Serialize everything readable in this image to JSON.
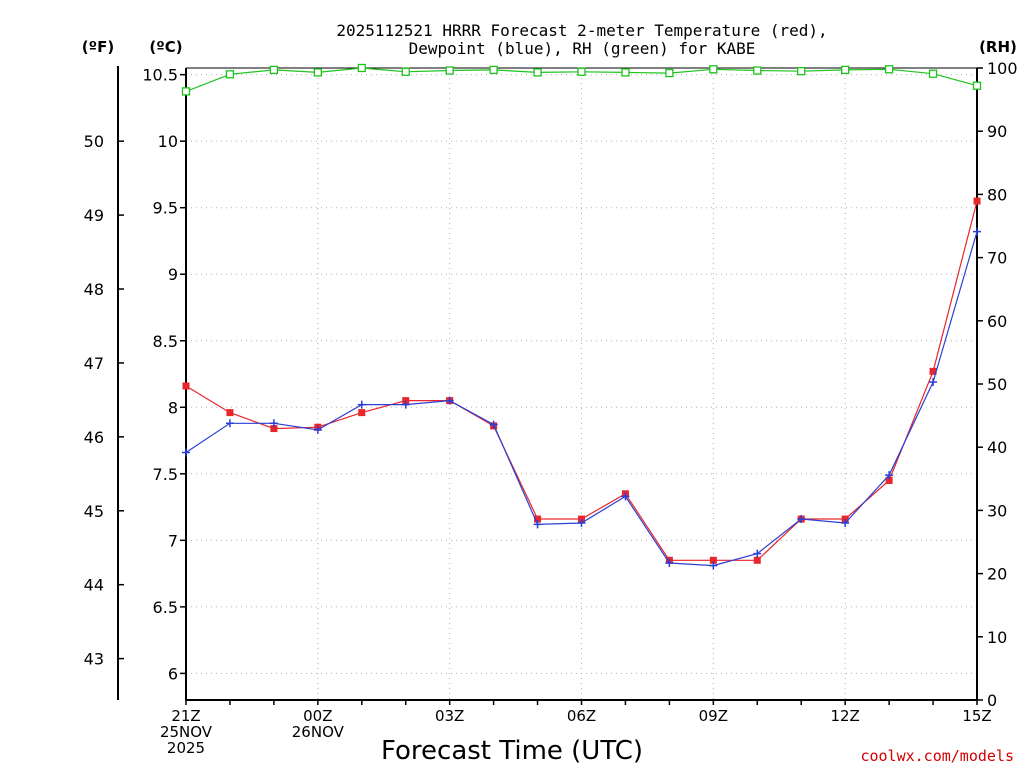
{
  "chart_data": {
    "type": "line",
    "title_line1": "2025112521 HRRR Forecast 2-meter Temperature (red),",
    "title_line2": "Dewpoint (blue), RH (green) for KABE",
    "unit_f": "(ºF)",
    "unit_c": "(ºC)",
    "unit_rh": "(RH)",
    "xlabel": "Forecast Time (UTC)",
    "watermark": "coolwx.com/models",
    "x_hours": [
      0,
      1,
      2,
      3,
      4,
      5,
      6,
      7,
      8,
      9,
      10,
      11,
      12,
      13,
      14,
      15,
      16,
      17,
      18
    ],
    "x_ticks": [
      {
        "hour": 0,
        "lines": [
          "21Z",
          "25NOV",
          "2025"
        ]
      },
      {
        "hour": 3,
        "lines": [
          "00Z",
          "26NOV"
        ]
      },
      {
        "hour": 6,
        "lines": [
          "03Z"
        ]
      },
      {
        "hour": 9,
        "lines": [
          "06Z"
        ]
      },
      {
        "hour": 12,
        "lines": [
          "09Z"
        ]
      },
      {
        "hour": 15,
        "lines": [
          "12Z"
        ]
      },
      {
        "hour": 18,
        "lines": [
          "15Z"
        ]
      }
    ],
    "c_axis": {
      "range": [
        5.8,
        10.55
      ],
      "ticks": [
        "6",
        "6.5",
        "7",
        "7.5",
        "8",
        "8.5",
        "9",
        "9.5",
        "10",
        "10.5"
      ]
    },
    "f_axis": {
      "ticks": [
        "43",
        "44",
        "45",
        "46",
        "47",
        "48",
        "49",
        "50"
      ]
    },
    "rh_axis": {
      "range": [
        0,
        100
      ],
      "ticks": [
        "0",
        "10",
        "20",
        "30",
        "40",
        "50",
        "60",
        "70",
        "80",
        "90",
        "100"
      ]
    },
    "series": [
      {
        "name": "Temperature",
        "unit": "C",
        "color": "#e8262b",
        "marker": "square",
        "values": [
          8.16,
          7.96,
          7.84,
          7.85,
          7.96,
          8.05,
          8.05,
          7.86,
          7.16,
          7.16,
          7.35,
          6.85,
          6.85,
          6.85,
          7.16,
          7.16,
          7.45,
          8.27,
          9.55
        ]
      },
      {
        "name": "Dewpoint",
        "unit": "C",
        "color": "#2b3fd6",
        "marker": "plus",
        "values": [
          7.66,
          7.88,
          7.88,
          7.83,
          8.02,
          8.02,
          8.05,
          7.87,
          7.12,
          7.13,
          7.33,
          6.83,
          6.81,
          6.9,
          7.16,
          7.13,
          7.49,
          8.19,
          9.32
        ]
      },
      {
        "name": "RH",
        "unit": "%",
        "color": "#1cc41c",
        "marker": "open-square",
        "values": [
          96.3,
          99.0,
          99.7,
          99.3,
          100.0,
          99.4,
          99.6,
          99.7,
          99.3,
          99.4,
          99.3,
          99.2,
          99.8,
          99.6,
          99.5,
          99.7,
          99.8,
          99.1,
          97.2
        ]
      }
    ]
  }
}
